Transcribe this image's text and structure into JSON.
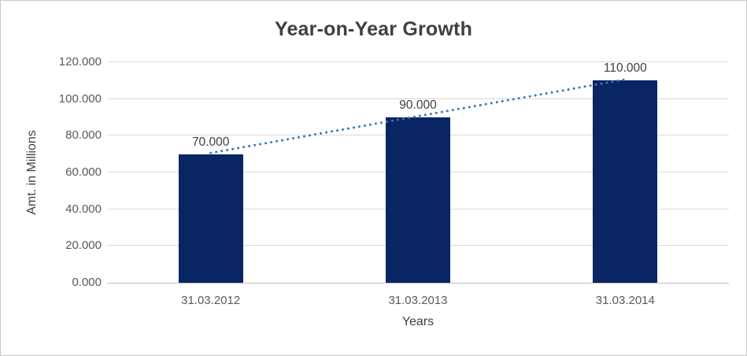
{
  "chart_data": {
    "type": "bar",
    "title": "Year-on-Year Growth",
    "xlabel": "Years",
    "ylabel": "Amt. in Millions",
    "categories": [
      "31.03.2012",
      "31.03.2013",
      "31.03.2014"
    ],
    "values": [
      70,
      90,
      110
    ],
    "data_labels": [
      "70.000",
      "90.000",
      "110.000"
    ],
    "ylim": [
      0,
      120
    ],
    "yticks": [
      0,
      20,
      40,
      60,
      80,
      100,
      120
    ],
    "ytick_labels": [
      "0.000",
      "20.000",
      "40.000",
      "60.000",
      "80.000",
      "100.000",
      "120.000"
    ],
    "grid": true,
    "legend": "none",
    "trendline": {
      "type": "linear",
      "style": "dotted",
      "start_value": 70,
      "end_value": 110
    },
    "colors": {
      "bar": "#0a2564",
      "trendline": "#3b76bb",
      "gridline": "#d9d9d9",
      "axis_line": "#bfbfbf",
      "title_text": "#404040",
      "tick_text": "#595959",
      "label_text": "#404040",
      "frame_border": "#c9c9c9",
      "background": "#ffffff"
    }
  }
}
